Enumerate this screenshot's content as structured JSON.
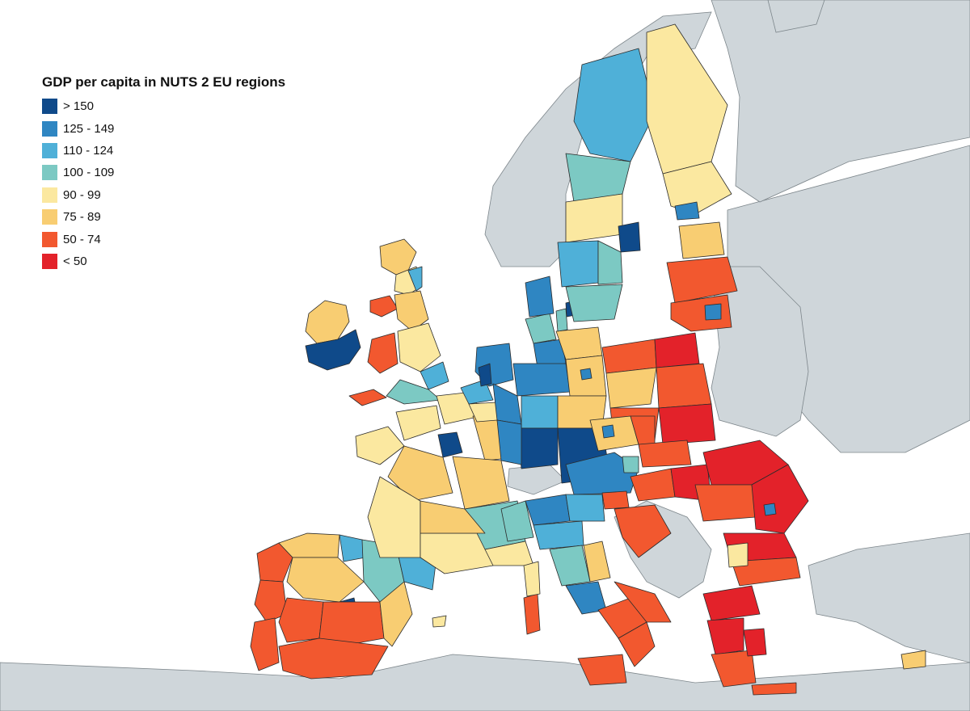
{
  "title": "GDP per capita in NUTS 2 EU regions",
  "legend": [
    {
      "label": "> 150",
      "color": "#0f4a8a"
    },
    {
      "label": "125 - 149",
      "color": "#2f86c2"
    },
    {
      "label": "110 - 124",
      "color": "#4fb0d8"
    },
    {
      "label": "100 - 109",
      "color": "#7cc9c3"
    },
    {
      "label": "90 - 99",
      "color": "#fbe8a0"
    },
    {
      "label": "75 - 89",
      "color": "#f8cd72"
    },
    {
      "label": "50 - 74",
      "color": "#f2582f"
    },
    {
      "label": "< 50",
      "color": "#e3222a"
    }
  ],
  "colors": {
    "sea": "#ffffff",
    "non_eu_land": "#cfd6da",
    "border": "#2b2b2b"
  }
}
